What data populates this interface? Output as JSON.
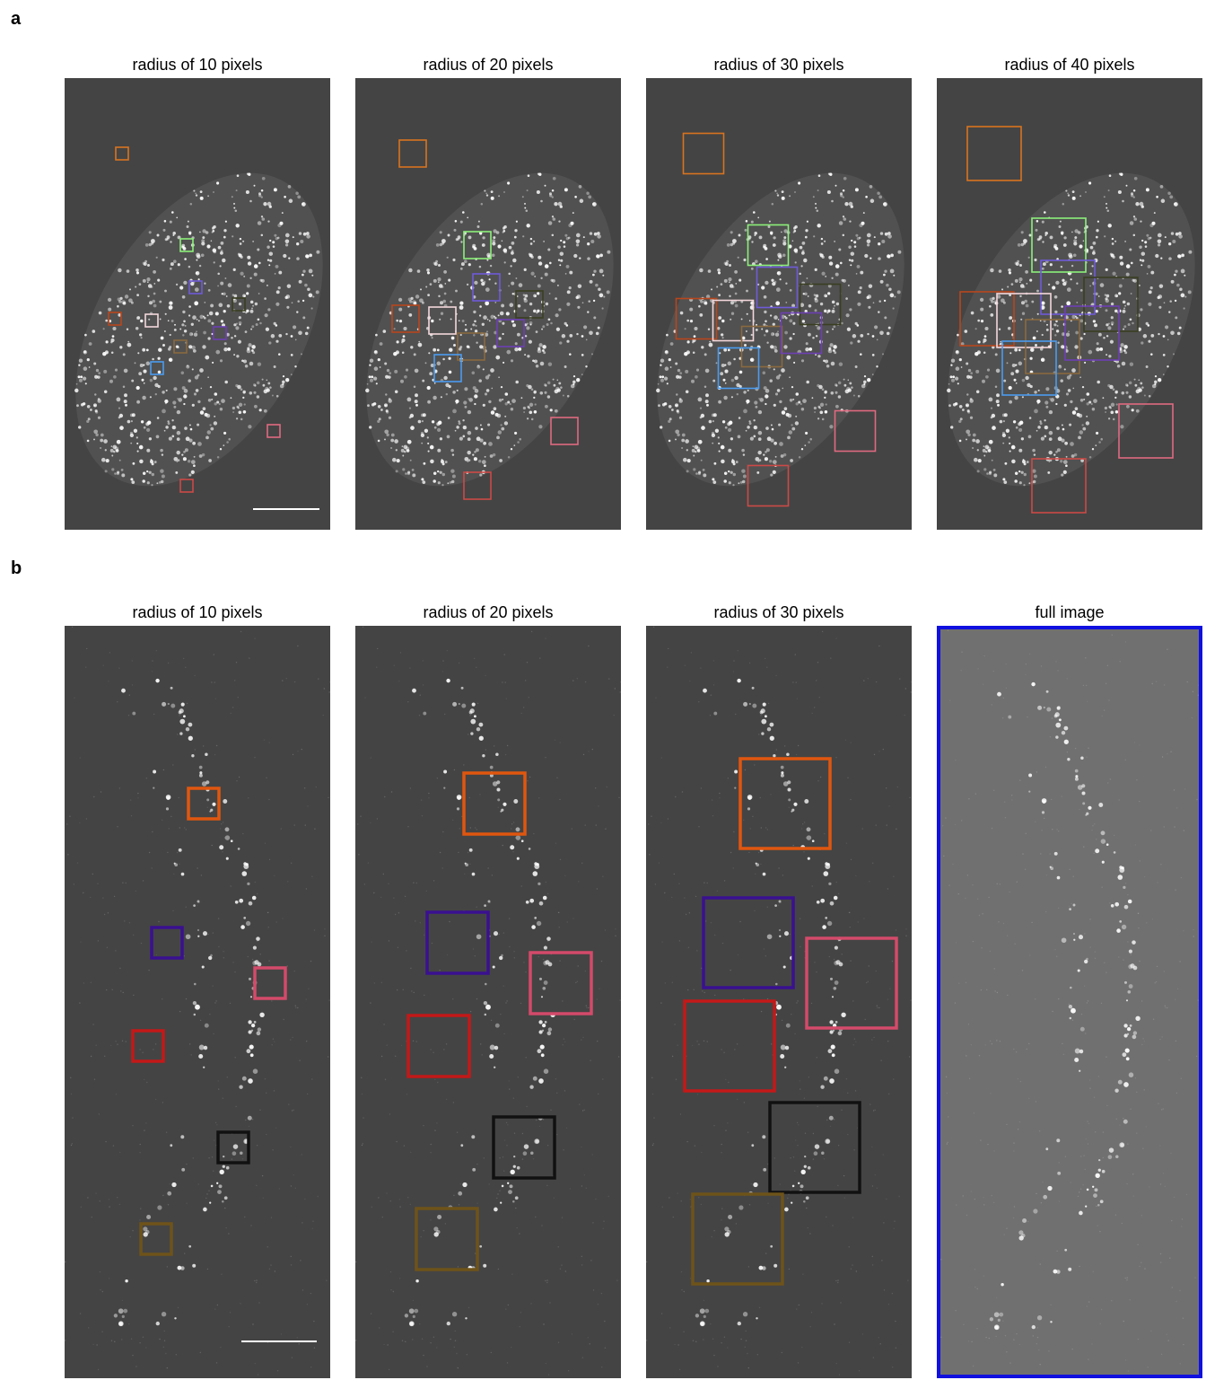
{
  "panels": [
    {
      "letter": "a",
      "titles": [
        "radius of 10 pixels",
        "radius of 20 pixels",
        "radius of 30 pixels",
        "radius of 40 pixels"
      ],
      "roi_colors": [
        "#d9731f",
        "#8df07a",
        "#6f5ad8",
        "#3a3f22",
        "#b8461d",
        "#f4d8dc",
        "#8a6a3e",
        "#6d3fb4",
        "#4b9cf0",
        "#e06a80",
        "#cc4a46"
      ]
    },
    {
      "letter": "b",
      "titles": [
        "radius of 10 pixels",
        "radius of 20 pixels",
        "radius of 30 pixels",
        "full image"
      ],
      "roi_colors": [
        "#e0560f",
        "#3a1090",
        "#d44a6a",
        "#c41818",
        "#111111",
        "#6e5319"
      ]
    }
  ],
  "full_image_border_color": "#1010e0"
}
